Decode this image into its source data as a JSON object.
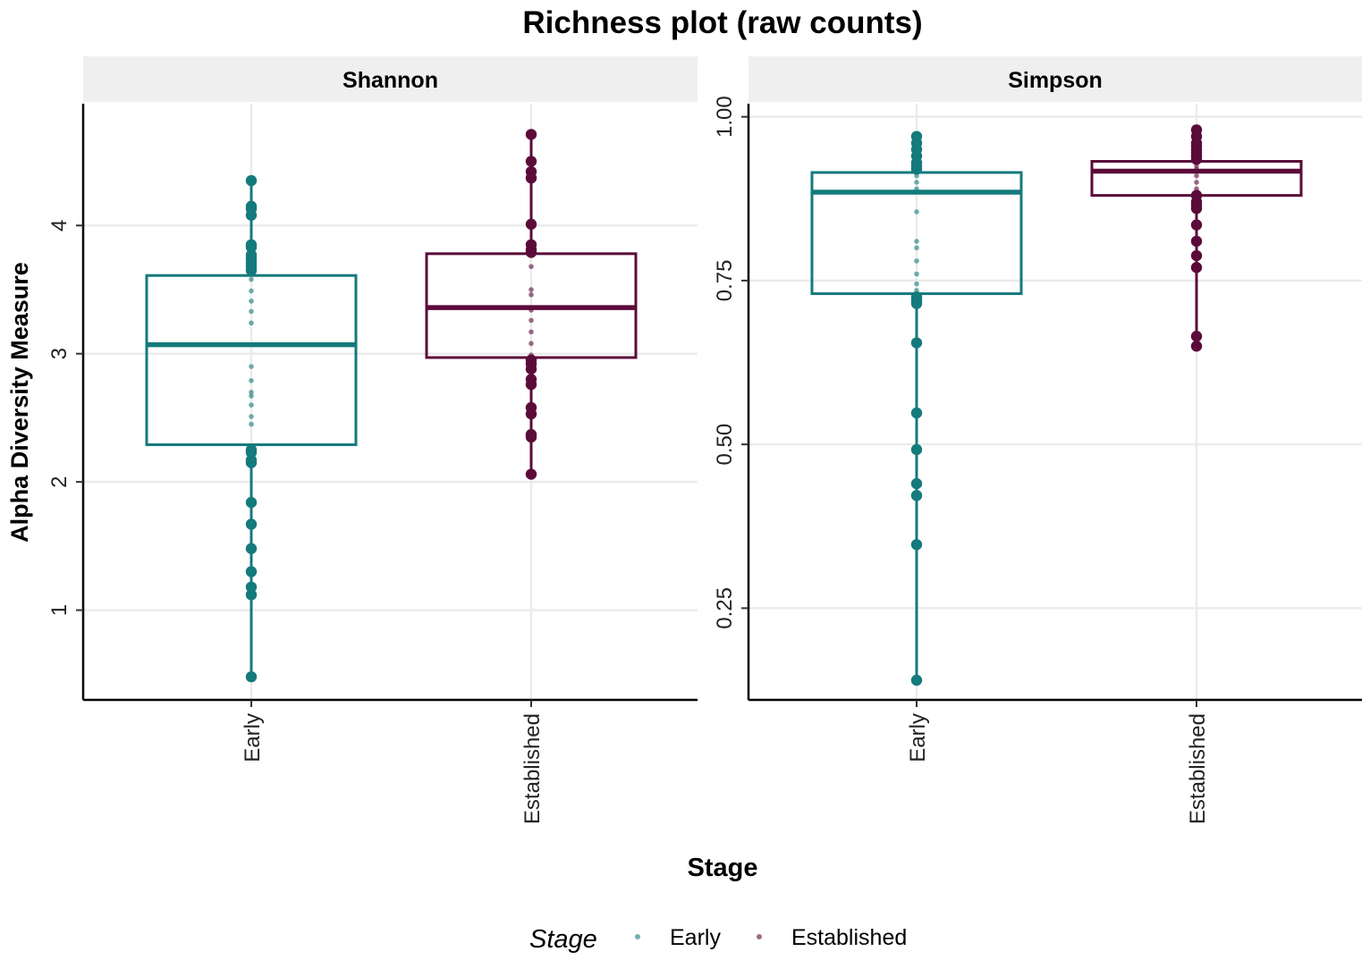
{
  "chart_data": {
    "type": "box",
    "title": "Richness plot (raw counts)",
    "xlabel": "Stage",
    "ylabel": "Alpha Diversity Measure",
    "categories": [
      "Early",
      "Established"
    ],
    "colors": {
      "Early": "#147A7C",
      "Established": "#5B0B3A"
    },
    "legend": {
      "title": "Stage",
      "entries": [
        "Early",
        "Established"
      ],
      "position": "bottom"
    },
    "panels": [
      {
        "name": "Shannon",
        "ylim": [
          0.3,
          4.95
        ],
        "yticks": [
          1,
          2,
          3,
          4
        ],
        "ytick_labels": [
          "1",
          "2",
          "3",
          "4"
        ],
        "boxes": [
          {
            "group": "Early",
            "whisker_low": 0.48,
            "q1": 2.29,
            "median": 3.07,
            "q3": 3.61,
            "whisker_high": 4.35
          },
          {
            "group": "Established",
            "whisker_low": 2.06,
            "q1": 2.97,
            "median": 3.36,
            "q3": 3.78,
            "whisker_high": 4.71
          }
        ],
        "points": [
          {
            "group": "Early",
            "values": [
              4.35,
              4.15,
              4.13,
              4.08,
              3.85,
              3.83,
              3.77,
              3.74,
              3.71,
              3.68,
              3.65,
              3.58,
              3.49,
              3.41,
              3.33,
              3.24,
              2.9,
              2.79,
              2.7,
              2.67,
              2.6,
              2.51,
              2.45,
              2.25,
              2.23,
              2.17,
              2.15,
              1.84,
              1.67,
              1.48,
              1.3,
              1.18,
              1.12,
              0.48
            ]
          },
          {
            "group": "Established",
            "values": [
              4.71,
              4.5,
              4.42,
              4.37,
              4.01,
              3.85,
              3.81,
              3.79,
              3.68,
              3.5,
              3.46,
              3.34,
              3.26,
              3.17,
              3.08,
              2.99,
              2.95,
              2.92,
              2.88,
              2.8,
              2.76,
              2.58,
              2.53,
              2.37,
              2.35,
              2.06
            ]
          }
        ]
      },
      {
        "name": "Simpson",
        "ylim": [
          0.11,
          1.02
        ],
        "yticks": [
          0.25,
          0.5,
          0.75,
          1.0
        ],
        "ytick_labels": [
          "0.25",
          "0.50",
          "0.75",
          "1.00"
        ],
        "boxes": [
          {
            "group": "Early",
            "whisker_low": 0.14,
            "q1": 0.73,
            "median": 0.885,
            "q3": 0.915,
            "whisker_high": 0.97
          },
          {
            "group": "Established",
            "whisker_low": 0.65,
            "q1": 0.88,
            "median": 0.917,
            "q3": 0.932,
            "whisker_high": 0.98
          }
        ],
        "points": [
          {
            "group": "Early",
            "values": [
              0.97,
              0.96,
              0.95,
              0.94,
              0.93,
              0.925,
              0.92,
              0.91,
              0.9,
              0.89,
              0.855,
              0.81,
              0.8,
              0.78,
              0.76,
              0.745,
              0.735,
              0.725,
              0.72,
              0.715,
              0.655,
              0.548,
              0.492,
              0.44,
              0.422,
              0.347,
              0.14
            ]
          },
          {
            "group": "Established",
            "values": [
              0.98,
              0.97,
              0.96,
              0.955,
              0.95,
              0.945,
              0.94,
              0.935,
              0.93,
              0.925,
              0.92,
              0.91,
              0.9,
              0.89,
              0.88,
              0.87,
              0.865,
              0.86,
              0.835,
              0.81,
              0.788,
              0.77,
              0.665,
              0.65
            ]
          }
        ]
      }
    ]
  }
}
